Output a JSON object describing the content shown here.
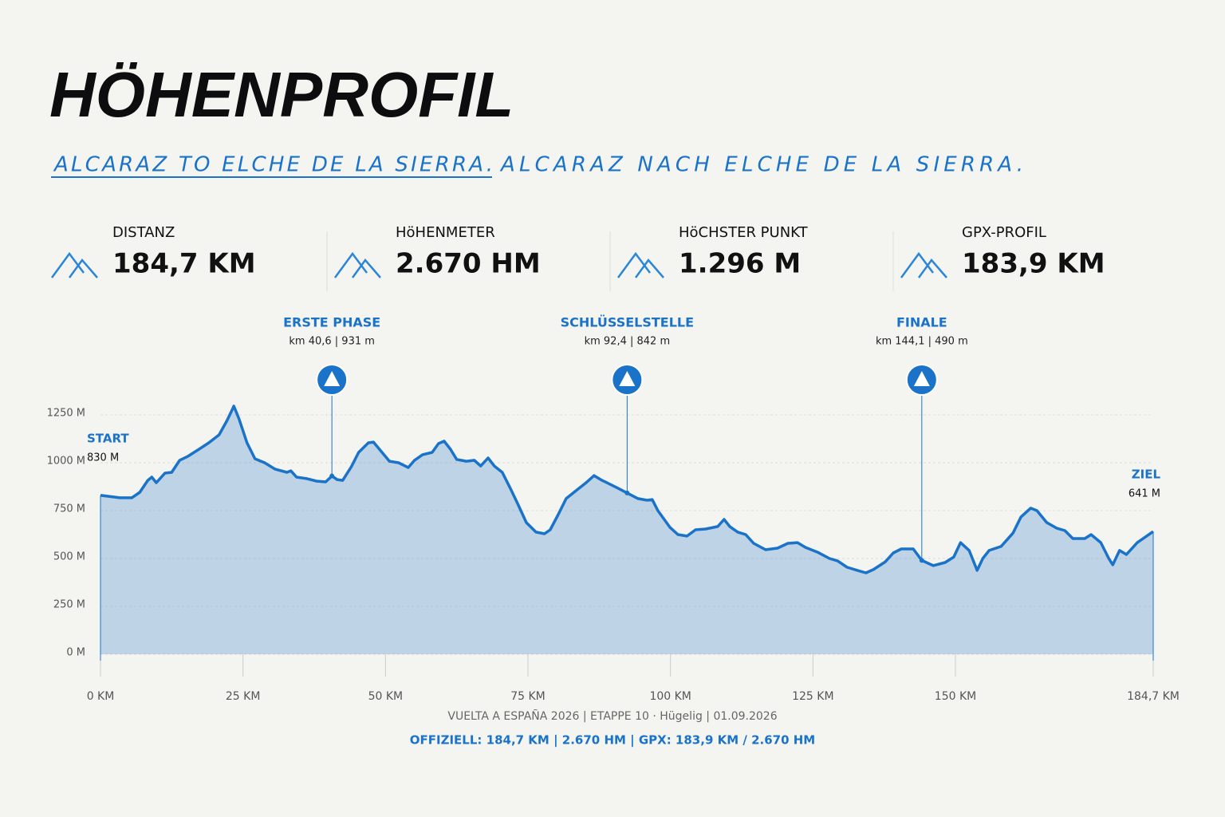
{
  "title": "HÖHENPROFIL",
  "subtitle": [
    "ALCARAZ TO ELCHE DE LA SIERRA.",
    "ALCARAZ NACH ELCHE DE LA SIERRA."
  ],
  "stats": [
    {
      "label": "DISTANZ",
      "value": "184,7 KM"
    },
    {
      "label": "HöHENMETER",
      "value": "2.670 HM"
    },
    {
      "label": "HöCHSTER PUNKT",
      "value": "1.296 M"
    },
    {
      "label": "GPX-PROFIL",
      "value": "183,9 KM"
    }
  ],
  "footer": [
    "VUELTA A ESPAÑA 2026 | ETAPPE 10 · Hügelig | 01.09.2026",
    "OFFIZIELL: 184,7 KM | 2.670 HM | GPX: 183,9 KM / 2.670 HM"
  ],
  "chart_data": {
    "type": "area",
    "color": "#1a73c8",
    "grid": true,
    "x": [
      0,
      3.4,
      5.5,
      6.9,
      8.3,
      9.0,
      9.8,
      11.3,
      12.5,
      13.9,
      15.3,
      17.3,
      19.0,
      20.8,
      22.2,
      23.2,
      23.4,
      24.3,
      25.7,
      27.1,
      28.8,
      30.6,
      32.7,
      33.4,
      34.4,
      36.2,
      37.9,
      39.5,
      40.6,
      41.5,
      42.5,
      44.0,
      45.3,
      47.0,
      47.9,
      49.3,
      50.7,
      52.3,
      54.0,
      55.1,
      56.5,
      58.2,
      59.3,
      60.3,
      61.4,
      62.5,
      64.2,
      65.6,
      66.7,
      68.0,
      69.1,
      70.5,
      71.9,
      73.3,
      74.7,
      76.4,
      77.9,
      78.9,
      80.3,
      81.7,
      83.8,
      85.2,
      86.6,
      88.0,
      89.4,
      90.8,
      92.4,
      94.3,
      95.9,
      96.8,
      97.8,
      99.9,
      101.3,
      102.9,
      104.4,
      106.2,
      108.3,
      109.4,
      110.4,
      111.8,
      113.2,
      114.6,
      116.7,
      118.8,
      120.6,
      122.3,
      123.7,
      125.8,
      127.9,
      129.3,
      131.0,
      132.8,
      134.3,
      135.6,
      137.7,
      139.1,
      140.5,
      142.6,
      144.1,
      146.1,
      148.2,
      149.7,
      150.9,
      152.4,
      153.8,
      154.8,
      155.9,
      158.0,
      160.1,
      161.5,
      163.2,
      164.3,
      166.0,
      167.8,
      169.2,
      170.6,
      172.7,
      173.8,
      175.5,
      176.9,
      177.6,
      178.8,
      180.0,
      181.9,
      184.7
    ],
    "values": [
      830,
      817,
      817,
      846,
      908,
      925,
      896,
      946,
      950,
      1013,
      1033,
      1071,
      1104,
      1146,
      1221,
      1283,
      1296,
      1229,
      1104,
      1021,
      1000,
      967,
      950,
      958,
      925,
      917,
      904,
      900,
      931,
      912,
      908,
      979,
      1054,
      1104,
      1108,
      1058,
      1008,
      1000,
      975,
      1013,
      1042,
      1054,
      1100,
      1113,
      1071,
      1017,
      1008,
      1013,
      983,
      1025,
      983,
      950,
      867,
      779,
      688,
      638,
      629,
      650,
      729,
      813,
      863,
      896,
      933,
      908,
      888,
      867,
      842,
      813,
      804,
      808,
      750,
      663,
      625,
      617,
      650,
      654,
      667,
      704,
      667,
      638,
      625,
      579,
      546,
      554,
      579,
      583,
      558,
      533,
      500,
      488,
      454,
      438,
      425,
      442,
      483,
      529,
      550,
      550,
      490,
      463,
      479,
      508,
      583,
      542,
      438,
      500,
      542,
      563,
      633,
      717,
      763,
      750,
      688,
      658,
      646,
      604,
      604,
      625,
      583,
      500,
      467,
      542,
      521,
      583,
      641
    ],
    "xlim": [
      0,
      184.7
    ],
    "xticks": [
      {
        "value": 0,
        "label": "0 KM"
      },
      {
        "value": 25,
        "label": "25 KM"
      },
      {
        "value": 50,
        "label": "50 KM"
      },
      {
        "value": 75,
        "label": "75 KM"
      },
      {
        "value": 100,
        "label": "100 KM"
      },
      {
        "value": 125,
        "label": "125 KM"
      },
      {
        "value": 150,
        "label": "150 KM"
      },
      {
        "value": 184.7,
        "label": "184,7 KM"
      }
    ],
    "ylim": [
      0,
      1250
    ],
    "yticks": [
      {
        "value": 0,
        "label": "0 M"
      },
      {
        "value": 250,
        "label": "250 M"
      },
      {
        "value": 500,
        "label": "500 M"
      },
      {
        "value": 750,
        "label": "750 M"
      },
      {
        "value": 1000,
        "label": "1000 M"
      },
      {
        "value": 1250,
        "label": "1250 M"
      }
    ],
    "start": {
      "title": "START",
      "label": "830 M"
    },
    "end": {
      "title": "ZIEL",
      "label": "641 M"
    },
    "annotations": [
      {
        "title": "ERSTE PHASE",
        "label": "km 40,6 | 931 m",
        "x": 40.6,
        "value": 931
      },
      {
        "title": "SCHLÜSSELSTELLE",
        "label": "km 92,4 | 842 m",
        "x": 92.4,
        "value": 842
      },
      {
        "title": "FINALE",
        "label": "km 144,1 | 490 m",
        "x": 144.1,
        "value": 490
      }
    ]
  }
}
